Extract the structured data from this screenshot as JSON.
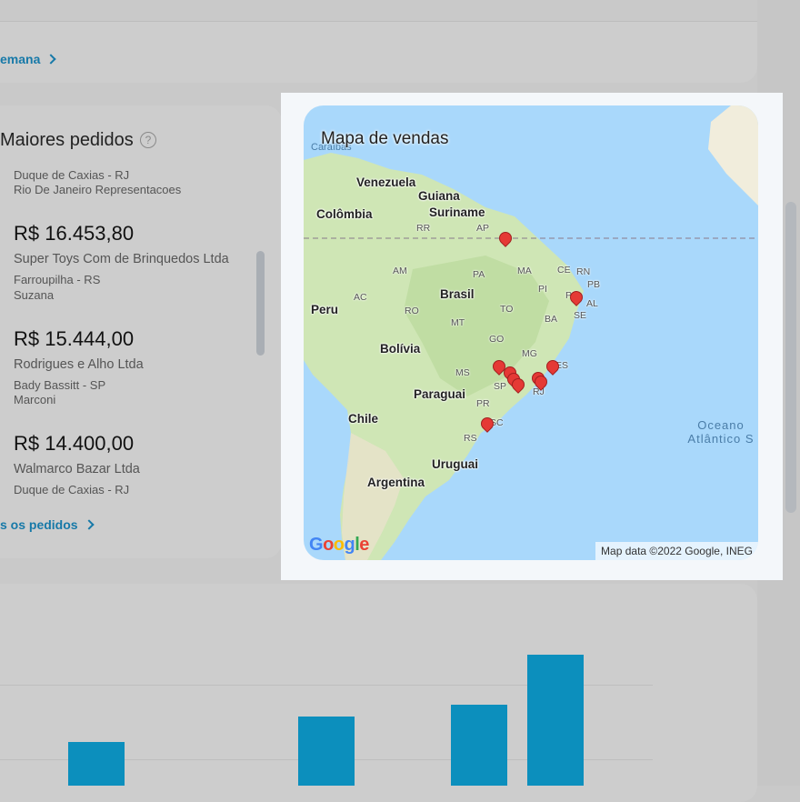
{
  "top_card": {
    "week_link": "emana"
  },
  "orders": {
    "title": "Maiores pedidos",
    "help_glyph": "?",
    "partial_city": "Duque de Caxias - RJ",
    "partial_rep": "Rio De Janeiro Representacoes",
    "items": [
      {
        "value": "R$ 16.453,80",
        "company": "Super Toys Com de Brinquedos Ltda",
        "city": "Farroupilha - RS",
        "rep": "Suzana"
      },
      {
        "value": "R$ 15.444,00",
        "company": "Rodrigues e Alho Ltda",
        "city": "Bady Bassitt - SP",
        "rep": "Marconi"
      },
      {
        "value": "R$ 14.400,00",
        "company": "Walmarco Bazar Ltda",
        "city": "Duque de Caxias - RJ"
      }
    ],
    "all_link": "s os pedidos"
  },
  "map": {
    "title": "Mapa de vendas",
    "caribbean": "Caraíbas",
    "countries": [
      "Venezuela",
      "Guiana",
      "Suriname",
      "Colômbia",
      "Brasil",
      "Peru",
      "Bolívia",
      "Paraguai",
      "Chile",
      "Uruguai",
      "Argentina"
    ],
    "states": [
      "RR",
      "AP",
      "AM",
      "PA",
      "MA",
      "CE",
      "RN",
      "PB",
      "PI",
      "PE",
      "AL",
      "SE",
      "AC",
      "RO",
      "TO",
      "BA",
      "MT",
      "GO",
      "MG",
      "ES",
      "MS",
      "SP",
      "RJ",
      "PR",
      "SC",
      "RS"
    ],
    "ocean_line1": "Oceano",
    "ocean_line2": "Atlântico S",
    "attribution": "Map data ©2022 Google, INEG",
    "logo": "Google"
  },
  "colors": {
    "accent": "#1779a8",
    "bar": "#0c8fbd",
    "pin": "#e53935"
  },
  "chart_data": {
    "type": "bar",
    "values": [
      28,
      44,
      52,
      84
    ],
    "bar_labels": []
  }
}
